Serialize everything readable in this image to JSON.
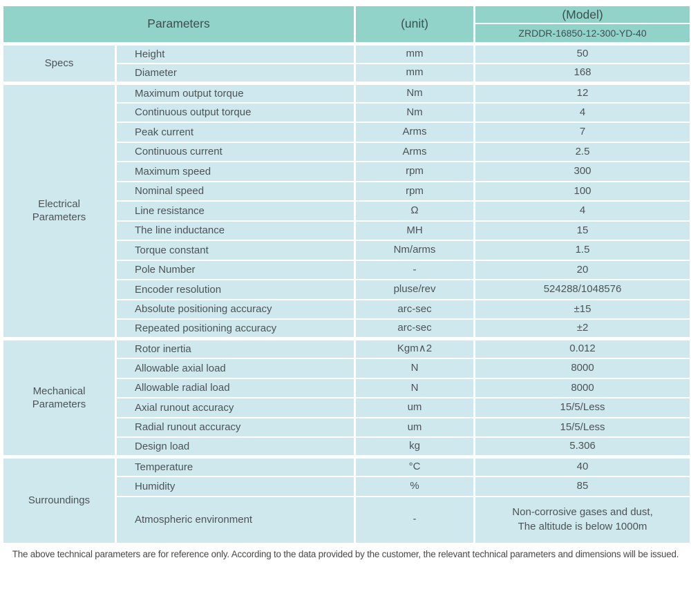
{
  "header": {
    "parameters_label": "Parameters",
    "unit_label": "(unit)",
    "model_label": "(Model)",
    "model_number": "ZRDDR-16850-12-300-YD-40"
  },
  "sections": [
    {
      "label": "Specs",
      "rows": [
        {
          "param": "Height",
          "unit": "mm",
          "value": "50"
        },
        {
          "param": "Diameter",
          "unit": "mm",
          "value": "168"
        }
      ]
    },
    {
      "label": "Electrical\nParameters",
      "rows": [
        {
          "param": "Maximum output torque",
          "unit": "Nm",
          "value": "12"
        },
        {
          "param": "Continuous output torque",
          "unit": "Nm",
          "value": "4"
        },
        {
          "param": "Peak current",
          "unit": "Arms",
          "value": "7"
        },
        {
          "param": "Continuous current",
          "unit": "Arms",
          "value": "2.5"
        },
        {
          "param": "Maximum speed",
          "unit": "rpm",
          "value": "300"
        },
        {
          "param": "Nominal speed",
          "unit": "rpm",
          "value": "100"
        },
        {
          "param": "Line resistance",
          "unit": "Ω",
          "value": "4"
        },
        {
          "param": "The line inductance",
          "unit": "MH",
          "value": "15"
        },
        {
          "param": "Torque constant",
          "unit": "Nm/arms",
          "value": "1.5"
        },
        {
          "param": "Pole Number",
          "unit": "-",
          "value": "20"
        },
        {
          "param": "Encoder resolution",
          "unit": "pluse/rev",
          "value": "524288/1048576"
        },
        {
          "param": "Absolute positioning accuracy",
          "unit": "arc-sec",
          "value": "±15"
        },
        {
          "param": "Repeated positioning accuracy",
          "unit": "arc-sec",
          "value": "±2"
        }
      ]
    },
    {
      "label": "Mechanical\nParameters",
      "rows": [
        {
          "param": "Rotor inertia",
          "unit": "Kgm∧2",
          "value": "0.012"
        },
        {
          "param": "Allowable axial load",
          "unit": "N",
          "value": "8000"
        },
        {
          "param": "Allowable radial load",
          "unit": "N",
          "value": "8000"
        },
        {
          "param": "Axial runout accuracy",
          "unit": "um",
          "value": "15/5/Less"
        },
        {
          "param": "Radial runout accuracy",
          "unit": "um",
          "value": "15/5/Less"
        },
        {
          "param": "Design load",
          "unit": "kg",
          "value": "5.306"
        }
      ]
    },
    {
      "label": "Surroundings",
      "rows": [
        {
          "param": "Temperature",
          "unit": "°C",
          "value": "40"
        },
        {
          "param": "Humidity",
          "unit": "%",
          "value": "85"
        },
        {
          "param": "Atmospheric environment",
          "unit": "-",
          "value": "Non-corrosive gases and dust,\nThe altitude is below 1000m",
          "tall": true
        }
      ]
    }
  ],
  "footer": {
    "note": "The above technical parameters are for reference only. According to the data provided by the customer, the relevant technical parameters and dimensions will be issued."
  },
  "colors": {
    "header_bg": "#91d3c9",
    "cell_bg": "#cfe8ee",
    "border": "#ffffff",
    "text": "#4c5356"
  }
}
